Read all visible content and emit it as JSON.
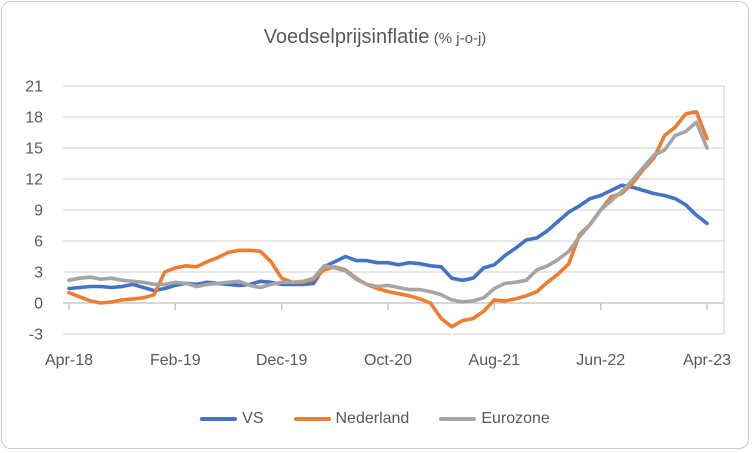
{
  "title": {
    "main": "Voedselprijsinflatie",
    "suffix": "(% j-o-j)"
  },
  "colors": {
    "vs": "#4472C4",
    "nederland": "#ED7D31",
    "eurozone": "#A5A5A5",
    "gridline": "#d9d9d9",
    "axis_line": "#bfbfbf",
    "axis_text": "#595959"
  },
  "chart_data": {
    "type": "line",
    "title": "Voedselprijsinflatie (% j-o-j)",
    "frequency": "monthly",
    "x_start": "Apr-18",
    "x_end": "Apr-23",
    "x_tick_labels": [
      "Apr-18",
      "Feb-19",
      "Dec-19",
      "Oct-20",
      "Aug-21",
      "Jun-22",
      "Apr-23"
    ],
    "x_tick_month_index": [
      0,
      10,
      20,
      30,
      40,
      50,
      60
    ],
    "y_ticks": [
      -3,
      0,
      3,
      6,
      9,
      12,
      15,
      18,
      21
    ],
    "ylim": [
      -3,
      21
    ],
    "grid": true,
    "legend_position": "bottom",
    "series": [
      {
        "name": "VS",
        "color": "#4472C4",
        "values": [
          1.4,
          1.5,
          1.6,
          1.6,
          1.5,
          1.6,
          1.8,
          1.5,
          1.2,
          1.4,
          1.7,
          1.9,
          1.8,
          2.0,
          1.9,
          1.8,
          1.7,
          1.8,
          2.1,
          2.0,
          1.8,
          1.8,
          1.8,
          1.9,
          3.5,
          4.0,
          4.5,
          4.1,
          4.1,
          3.9,
          3.9,
          3.7,
          3.9,
          3.8,
          3.6,
          3.5,
          2.4,
          2.2,
          2.4,
          3.4,
          3.7,
          4.6,
          5.3,
          6.1,
          6.3,
          7.0,
          7.9,
          8.8,
          9.4,
          10.1,
          10.4,
          10.9,
          11.4,
          11.2,
          10.9,
          10.6,
          10.4,
          10.1,
          9.5,
          8.5,
          7.7
        ]
      },
      {
        "name": "Nederland",
        "color": "#ED7D31",
        "values": [
          1.0,
          0.6,
          0.2,
          0.0,
          0.1,
          0.3,
          0.4,
          0.5,
          0.8,
          3.0,
          3.4,
          3.6,
          3.5,
          4.0,
          4.4,
          4.9,
          5.1,
          5.1,
          5.0,
          4.0,
          2.4,
          2.0,
          2.0,
          2.3,
          3.2,
          3.5,
          3.2,
          2.4,
          1.8,
          1.4,
          1.1,
          0.9,
          0.7,
          0.4,
          0.0,
          -1.5,
          -2.3,
          -1.7,
          -1.5,
          -0.8,
          0.3,
          0.2,
          0.4,
          0.7,
          1.1,
          2.0,
          2.8,
          3.8,
          6.6,
          7.6,
          9.0,
          10.3,
          10.6,
          11.6,
          12.9,
          14.0,
          16.2,
          17.0,
          18.3,
          18.5,
          15.9
        ]
      },
      {
        "name": "Eurozone",
        "color": "#A5A5A5",
        "values": [
          2.2,
          2.4,
          2.5,
          2.3,
          2.4,
          2.2,
          2.1,
          2.0,
          1.8,
          1.8,
          2.0,
          1.9,
          1.6,
          1.8,
          1.9,
          2.0,
          2.1,
          1.7,
          1.5,
          1.8,
          2.0,
          2.0,
          2.1,
          2.4,
          3.6,
          3.4,
          3.1,
          2.3,
          1.8,
          1.6,
          1.7,
          1.5,
          1.3,
          1.3,
          1.1,
          0.8,
          0.3,
          0.1,
          0.2,
          0.5,
          1.4,
          1.9,
          2.0,
          2.2,
          3.2,
          3.6,
          4.2,
          5.0,
          6.4,
          7.6,
          9.0,
          9.9,
          10.8,
          11.9,
          13.1,
          14.3,
          14.8,
          16.2,
          16.6,
          17.5,
          15.0
        ]
      }
    ]
  }
}
